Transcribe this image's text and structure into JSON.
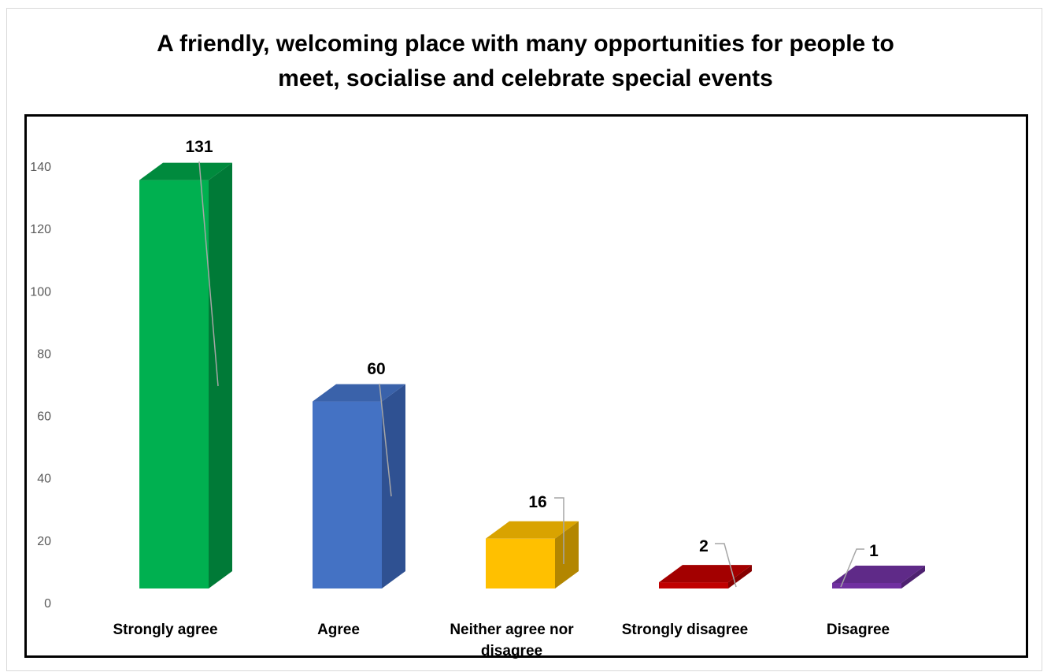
{
  "chart_data": {
    "type": "bar",
    "title": "A friendly, welcoming place with many opportunities for people to meet, socialise and celebrate special events",
    "title_lines": [
      "A friendly, welcoming place with many opportunities for people to",
      "meet, socialise and celebrate special events"
    ],
    "categories": [
      "Strongly agree",
      "Agree",
      "Neither agree nor disagree",
      "Strongly disagree",
      "Disagree"
    ],
    "category_lines": [
      [
        "Strongly agree"
      ],
      [
        "Agree"
      ],
      [
        "Neither agree nor",
        "disagree"
      ],
      [
        "Strongly disagree"
      ],
      [
        "Disagree"
      ]
    ],
    "values": [
      131,
      60,
      16,
      2,
      1
    ],
    "data_labels": [
      "131",
      "60",
      "16",
      "2",
      "1"
    ],
    "colors": [
      "#00b050",
      "#4472c4",
      "#ffc000",
      "#c00000",
      "#7030a0"
    ],
    "side_colors": [
      "#007a37",
      "#2f5192",
      "#b38600",
      "#860000",
      "#4e2170"
    ],
    "top_colors": [
      "#008a3d",
      "#3a62aa",
      "#d9a300",
      "#a30000",
      "#5f2a88"
    ],
    "ylim": [
      0,
      140
    ],
    "yticks": [
      0,
      20,
      40,
      60,
      80,
      100,
      120,
      140
    ],
    "ytick_labels": [
      "0",
      "20",
      "40",
      "60",
      "80",
      "100",
      "120",
      "140"
    ],
    "xlabel": "",
    "ylabel": "",
    "legend": "none",
    "grid": false,
    "style": "3d-column"
  }
}
